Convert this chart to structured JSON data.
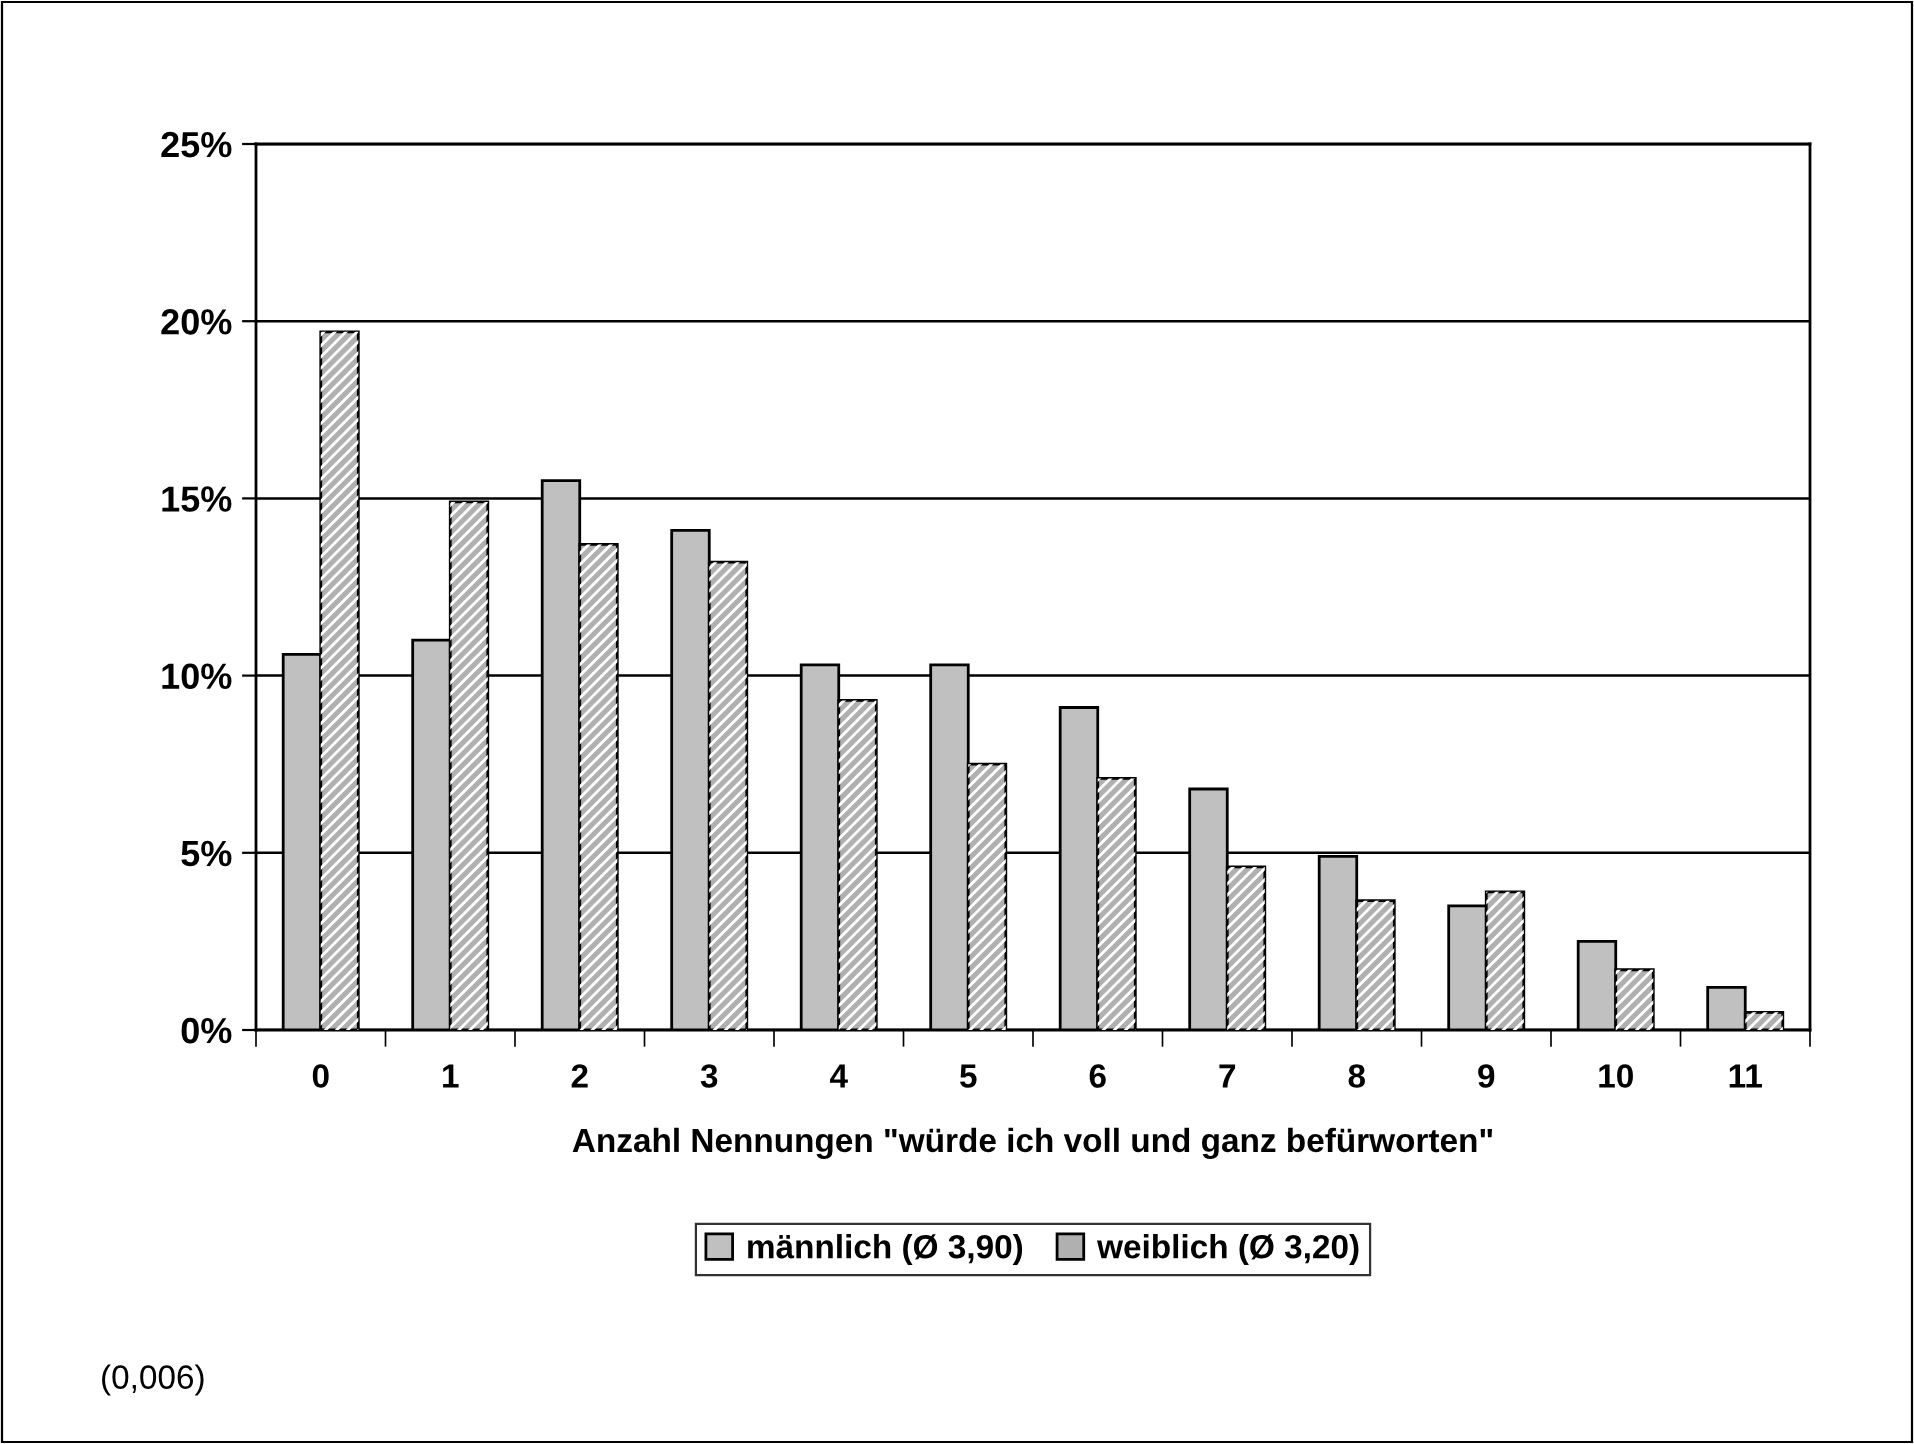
{
  "chart_data": {
    "type": "bar",
    "xlabel": "Anzahl Nennungen \"würde ich voll und ganz befürworten\"",
    "categories": [
      "0",
      "1",
      "2",
      "3",
      "4",
      "5",
      "6",
      "7",
      "8",
      "9",
      "10",
      "11"
    ],
    "series": [
      {
        "name": "männlich (Ø 3,90)",
        "color": "#c0c0c0",
        "values": [
          10.6,
          11.0,
          15.5,
          14.1,
          10.3,
          10.3,
          9.1,
          6.8,
          4.9,
          3.5,
          2.5,
          1.2
        ]
      },
      {
        "name": "weiblich (Ø 3,20)",
        "color": "#b0b0b0",
        "values": [
          19.7,
          14.9,
          13.7,
          13.2,
          9.3,
          7.5,
          7.1,
          4.6,
          3.65,
          3.9,
          1.7,
          0.5
        ]
      }
    ],
    "ylim": [
      0,
      25
    ],
    "yticks": [
      {
        "value": 0,
        "label": "0%"
      },
      {
        "value": 5,
        "label": "5%"
      },
      {
        "value": 10,
        "label": "10%"
      },
      {
        "value": 15,
        "label": "15%"
      },
      {
        "value": 20,
        "label": "20%"
      },
      {
        "value": 25,
        "label": "25%"
      }
    ],
    "grid": "y",
    "legend": "bottom",
    "annotations": [
      "(0,006)"
    ]
  }
}
